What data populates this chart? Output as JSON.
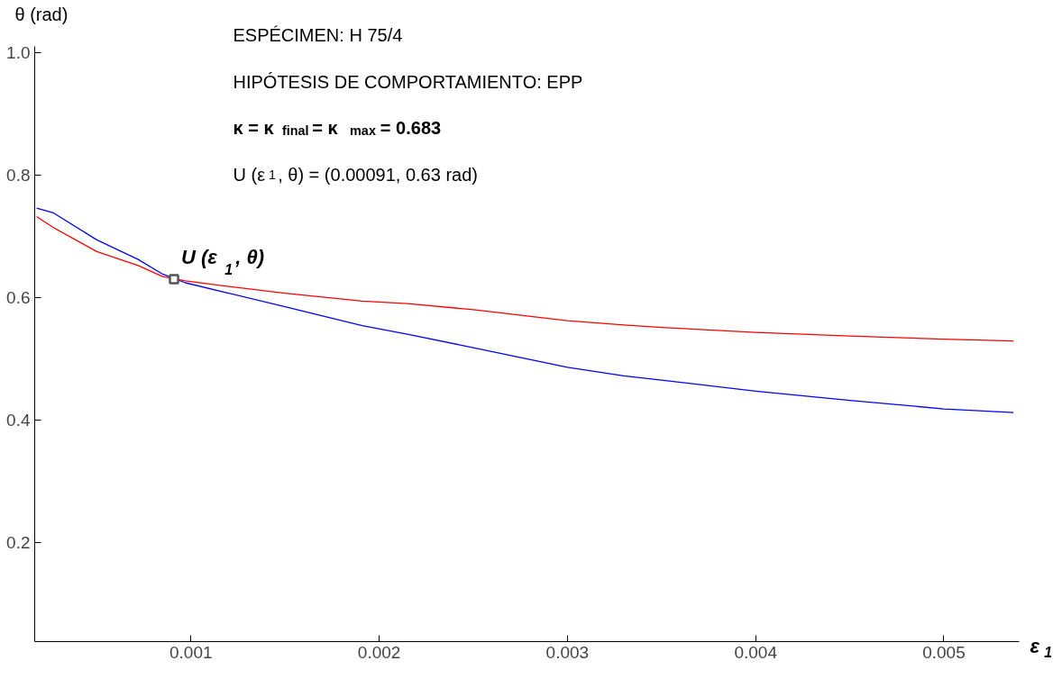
{
  "chart_data": {
    "type": "line",
    "xlabel": "ε$_{1}$",
    "ylabel": "θ (rad)",
    "xlim": [
      0.00017,
      0.0054
    ],
    "ylim": [
      0.038,
      1.01
    ],
    "xticks": [
      0.001,
      0.002,
      0.003,
      0.004,
      0.005
    ],
    "yticks": [
      0.2,
      0.4,
      0.6,
      0.8,
      {
        "value": 1.0,
        "label": "1.0"
      }
    ],
    "grid": false,
    "marker": "none",
    "line_style": "solid",
    "series": [
      {
        "color": "#0000ff",
        "x": [
          0.00018,
          0.00027,
          0.0005,
          0.00072,
          0.00085,
          0.00097,
          0.0012,
          0.0015,
          0.00191,
          0.00215,
          0.0025,
          0.003,
          0.0033,
          0.0035,
          0.004,
          0.0045,
          0.005,
          0.00537
        ],
        "values": [
          0.746,
          0.738,
          0.694,
          0.662,
          0.638,
          0.624,
          0.607,
          0.585,
          0.554,
          0.54,
          0.518,
          0.486,
          0.472,
          0.465,
          0.447,
          0.432,
          0.418,
          0.412
        ]
      },
      {
        "color": "#ff0000",
        "x": [
          0.00018,
          0.00027,
          0.0005,
          0.00072,
          0.00085,
          0.00097,
          0.0012,
          0.0015,
          0.00191,
          0.00215,
          0.0025,
          0.003,
          0.0033,
          0.0035,
          0.004,
          0.0045,
          0.005,
          0.00537
        ],
        "values": [
          0.732,
          0.714,
          0.675,
          0.652,
          0.634,
          0.627,
          0.618,
          0.607,
          0.594,
          0.59,
          0.58,
          0.562,
          0.555,
          0.551,
          0.543,
          0.537,
          0.532,
          0.529
        ]
      },
      {
        "type": "scatter",
        "marker": "square",
        "color": "#555555",
        "x": [
          0.00091
        ],
        "values": [
          0.63
        ]
      }
    ],
    "annotations": [
      "ESPÉCIMEN: H 75/4",
      "HIPÓTESIS DE COMPORTAMIENTO: EPP",
      "κ = κ$_{final}$ = κ$_{max}$ = 0.683",
      "U (ε$_{1}$, θ) = (0.00091, 0.63 rad)",
      {
        "text": "U (ε$_{1}$, θ)",
        "x": 0.00091,
        "y": 0.63
      }
    ]
  }
}
